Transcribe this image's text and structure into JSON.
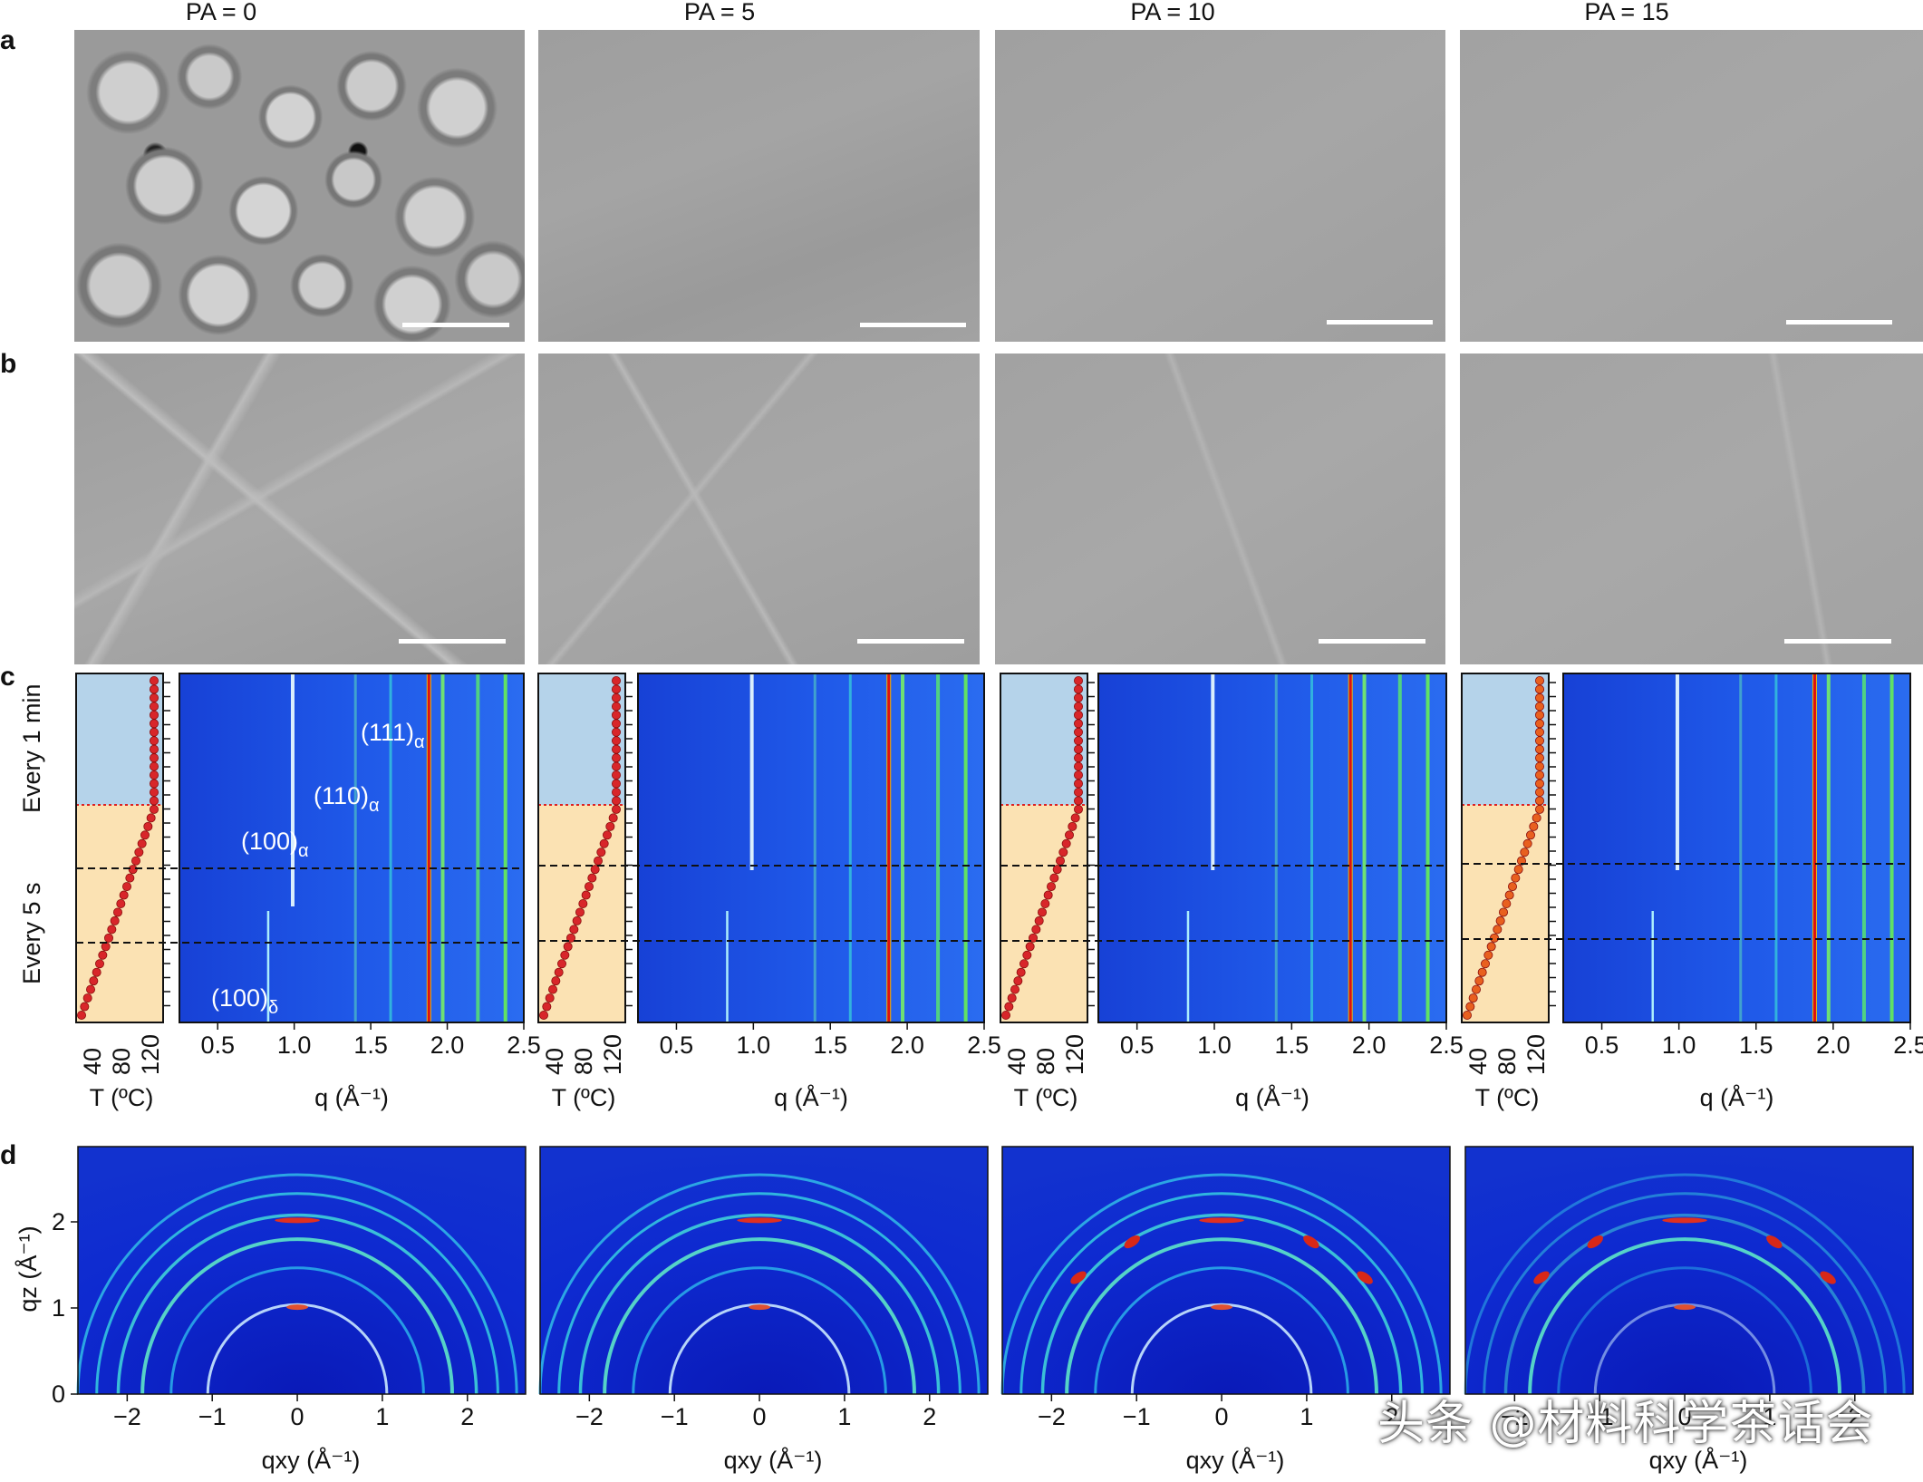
{
  "figure": {
    "columns": [
      "PA = 0",
      "PA = 5",
      "PA = 10",
      "PA = 15"
    ],
    "panels": [
      "a",
      "b",
      "c",
      "d"
    ],
    "panel_c": {
      "side_labels": [
        "Every 1 min",
        "Every 5 s"
      ],
      "t_axis_label": "T (ºC)",
      "t_ticks": [
        "40",
        "80",
        "120"
      ],
      "q_axis_label": "q (Å⁻¹)",
      "q_ticks": [
        "0.5",
        "1.0",
        "1.5",
        "2.0",
        "2.5"
      ],
      "peak_labels": {
        "p111": "(111)",
        "p110": "(110)",
        "p100a": "(100)",
        "p100d": "(100)",
        "sub_alpha": "α",
        "sub_delta": "δ"
      }
    },
    "panel_d": {
      "y_axis_label": "qz (Å⁻¹)",
      "y_ticks": [
        "0",
        "1",
        "2"
      ],
      "x_axis_label": "qxy (Å⁻¹)",
      "x_ticks": [
        "−2",
        "−1",
        "0",
        "1",
        "2"
      ]
    },
    "watermark": "头条 @材料科学茶话会"
  }
}
